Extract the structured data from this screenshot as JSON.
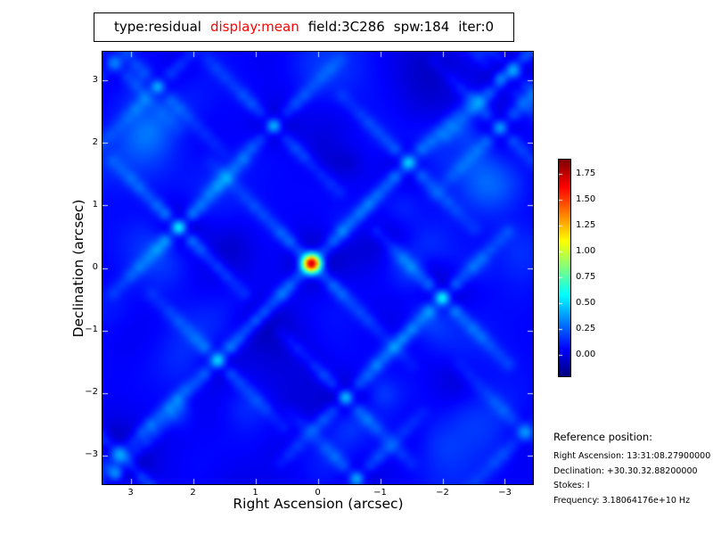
{
  "title": {
    "segments": [
      {
        "text": "type:residual",
        "color": "#000000"
      },
      {
        "text": "display:mean",
        "color": "#ff0000"
      },
      {
        "text": "field:3C286",
        "color": "#000000"
      },
      {
        "text": "spw:184",
        "color": "#000000"
      },
      {
        "text": "iter:0",
        "color": "#000000"
      }
    ]
  },
  "chart_data": {
    "type": "heatmap",
    "colormap": "jet",
    "xlabel": "Right Ascension (arcsec)",
    "ylabel": "Declination (arcsec)",
    "x_ticks": [
      "3",
      "2",
      "1",
      "0",
      "−1",
      "−2",
      "−3"
    ],
    "x_tick_values": [
      3,
      2,
      1,
      0,
      -1,
      -2,
      -3
    ],
    "y_ticks": [
      "3",
      "2",
      "1",
      "0",
      "−1",
      "−2",
      "−3"
    ],
    "y_tick_values": [
      3,
      2,
      1,
      0,
      -1,
      -2,
      -3
    ],
    "xlim": [
      3.45,
      -3.45
    ],
    "ylim": [
      -3.45,
      3.45
    ],
    "grid": false,
    "colorbar": {
      "ticks": [
        "1.75",
        "1.50",
        "1.25",
        "1.00",
        "0.75",
        "0.50",
        "0.25",
        "0.00"
      ],
      "tick_values": [
        1.75,
        1.5,
        1.25,
        1.0,
        0.75,
        0.5,
        0.25,
        0.0
      ],
      "range": [
        -0.21,
        1.89
      ],
      "position": "right"
    },
    "background_level": 0.05,
    "sources": [
      {
        "x": 0.1,
        "y": 0.07,
        "a": 1.85,
        "s": 0.11
      },
      {
        "x": 2.24,
        "y": 0.65,
        "a": 0.6,
        "s": 0.09
      },
      {
        "x": -2.01,
        "y": -0.48,
        "a": 0.6,
        "s": 0.09
      },
      {
        "x": 0.71,
        "y": 2.28,
        "a": 0.46,
        "s": 0.09
      },
      {
        "x": -1.46,
        "y": 1.69,
        "a": 0.45,
        "s": 0.09
      },
      {
        "x": 1.61,
        "y": -1.49,
        "a": 0.46,
        "s": 0.09
      },
      {
        "x": -0.45,
        "y": -2.08,
        "a": 0.5,
        "s": 0.09
      },
      {
        "x": -2.94,
        "y": 2.25,
        "a": 0.4,
        "s": 0.09
      },
      {
        "x": 3.2,
        "y": -3.0,
        "a": 0.55,
        "s": 0.12
      },
      {
        "x": 3.26,
        "y": -3.3,
        "a": 0.45,
        "s": 0.1
      },
      {
        "x": 2.58,
        "y": 2.91,
        "a": 0.35,
        "s": 0.08
      },
      {
        "x": 3.28,
        "y": 3.29,
        "a": 0.32,
        "s": 0.1
      },
      {
        "x": -3.15,
        "y": 3.16,
        "a": 0.45,
        "s": 0.1
      },
      {
        "x": -2.95,
        "y": 3.05,
        "a": 0.3,
        "s": 0.09
      },
      {
        "x": -3.35,
        "y": -2.64,
        "a": 0.35,
        "s": 0.1
      },
      {
        "x": -0.63,
        "y": -3.39,
        "a": 0.42,
        "s": 0.09
      }
    ]
  },
  "reference": {
    "heading": "Reference position:",
    "lines": [
      "Right Ascension: 13:31:08.27900000",
      "Declination: +30.30.32.88200000",
      "Stokes: I",
      "Frequency: 3.18064176e+10 Hz"
    ]
  }
}
